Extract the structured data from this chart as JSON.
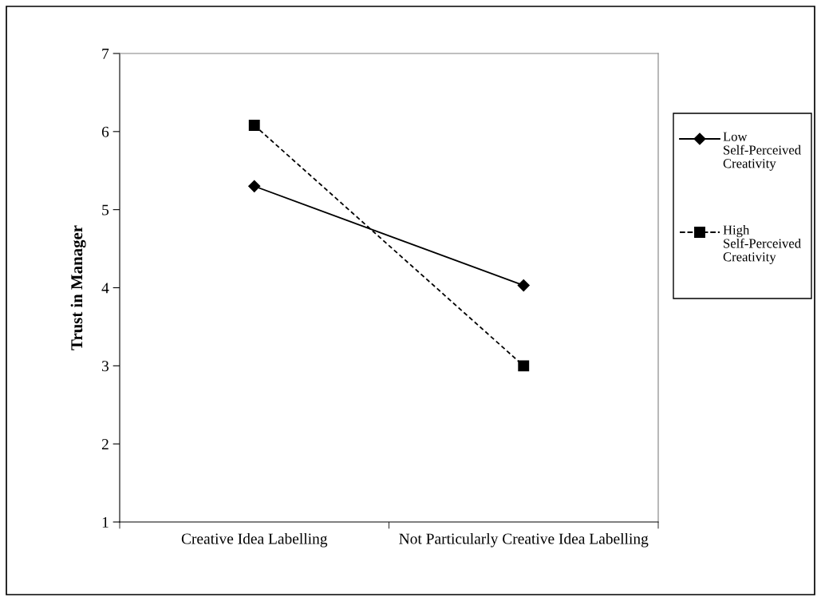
{
  "chart_data": {
    "type": "line",
    "ylabel": "Trust in Manager",
    "categories": [
      "Creative Idea Labelling",
      "Not Particularly Creative Idea Labelling"
    ],
    "series": [
      {
        "name": "Low Self-Perceived Creativity",
        "color": "#000000",
        "values": [
          5.3,
          4.03
        ],
        "marker": "diamond",
        "line_style": "solid"
      },
      {
        "name": "High Self-Perceived Creativity",
        "color": "#000000",
        "values": [
          6.08,
          3.0
        ],
        "marker": "square",
        "line_style": "dashed"
      }
    ],
    "ylim": [
      1,
      7
    ],
    "yticks": [
      1,
      2,
      3,
      4,
      5,
      6,
      7
    ],
    "grid": false,
    "legend": "right"
  }
}
